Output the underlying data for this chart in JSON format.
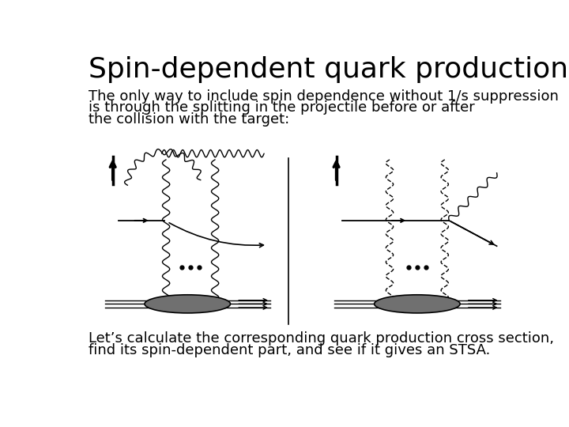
{
  "title": "Spin-dependent quark production",
  "subtitle_line1": "The only way to include spin dependence without 1/s suppression",
  "subtitle_line2": "is through the splitting in the projectile before or after",
  "subtitle_line3": "the collision with the target:",
  "footer_line1": "Let’s calculate the corresponding quark production cross section,",
  "footer_line2": "find its spin-dependent part, and see if it gives an STSA.",
  "bg_color": "#ffffff",
  "text_color": "#000000",
  "title_fontsize": 26,
  "subtitle_fontsize": 13,
  "footer_fontsize": 13,
  "diagram_gray": "#707070"
}
